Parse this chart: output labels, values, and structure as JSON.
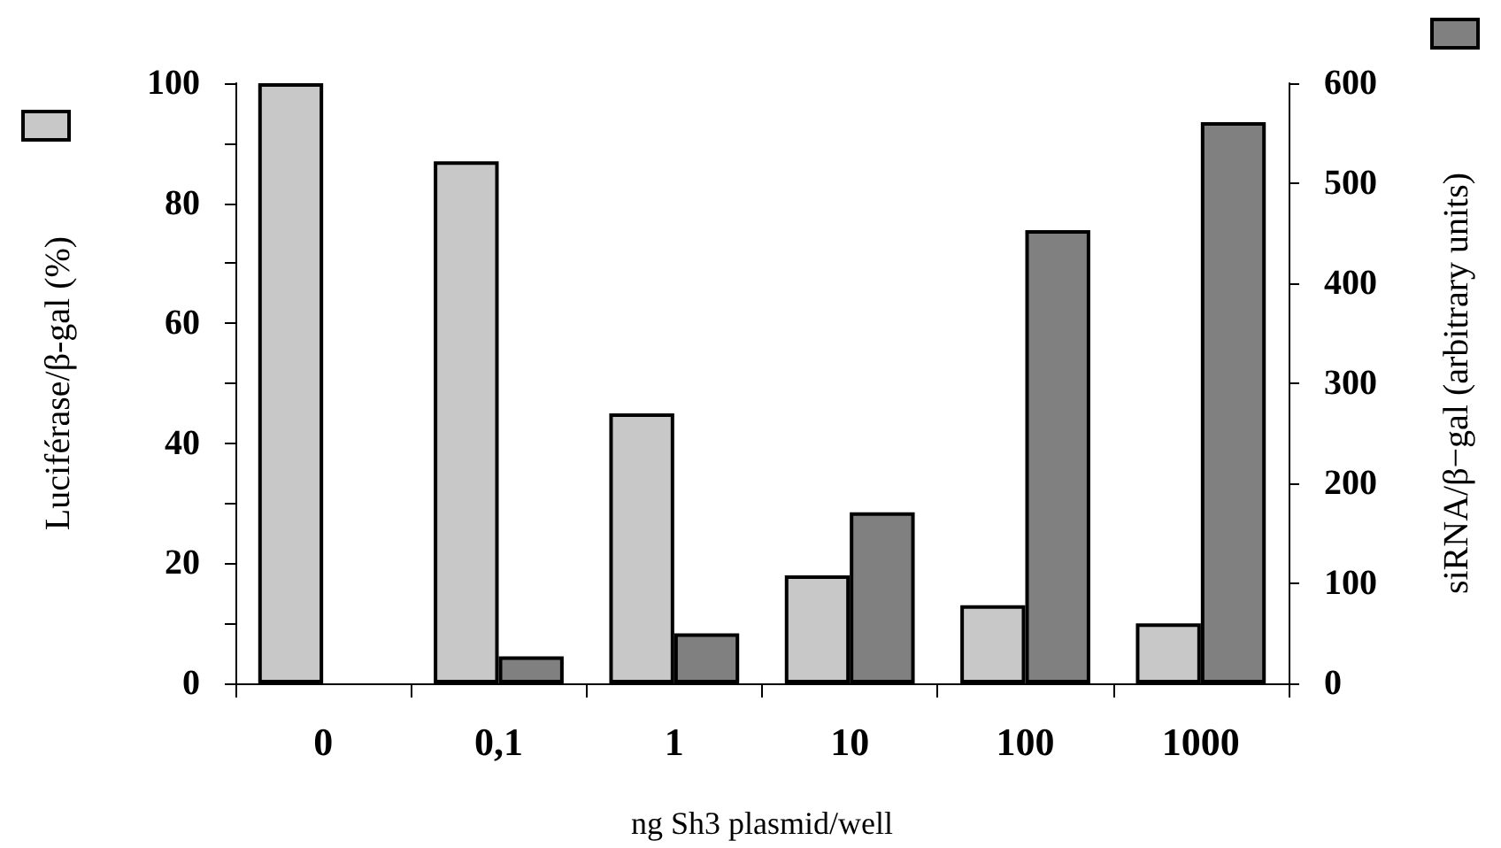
{
  "chart_data": {
    "type": "bar",
    "xlabel": "ng Sh3 plasmid/well",
    "ylabel": "Luciférase/β-gal (%)",
    "y2label": "siRNA/β−gal (arbitrary units)",
    "categories": [
      "0",
      "0,1",
      "1",
      "10",
      "100",
      "1000"
    ],
    "series": [
      {
        "color": "#c8c8c8",
        "values": [
          100,
          87,
          45,
          18,
          13,
          10
        ]
      },
      {
        "color": "#808080",
        "axis": "y2",
        "values": [
          null,
          27,
          50,
          171,
          453,
          561
        ]
      }
    ],
    "ylim": [
      0,
      100
    ],
    "yticks": [
      0,
      {
        "value": 10,
        "label": null
      },
      20,
      {
        "value": 30,
        "label": null
      },
      40,
      {
        "value": 50,
        "label": null
      },
      60,
      {
        "value": 70,
        "label": null
      },
      80,
      {
        "value": 90,
        "label": null
      },
      100
    ],
    "y2lim": [
      0,
      600
    ],
    "y2ticks": [
      0,
      100,
      200,
      300,
      400,
      500,
      600
    ],
    "grid": false
  }
}
